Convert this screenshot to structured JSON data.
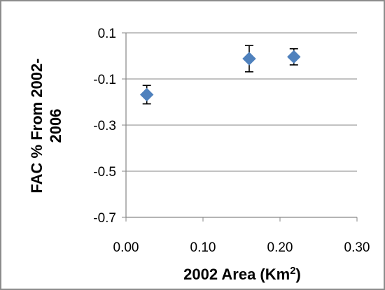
{
  "chart_data": {
    "type": "scatter",
    "title": "",
    "xlabel": "2002 Area (Km²)",
    "ylabel": "FAC % From 2002-2006",
    "ylabel_lines": [
      "FAC  % From  2002-",
      "2006"
    ],
    "xlim": [
      0.0,
      0.3
    ],
    "ylim": [
      -0.7,
      0.1
    ],
    "x_ticks": [
      0.0,
      0.1,
      0.2,
      0.3
    ],
    "x_tick_labels": [
      "0.00",
      "0.10",
      "0.20",
      "0.30"
    ],
    "y_ticks": [
      0.1,
      -0.1,
      -0.3,
      -0.5,
      -0.7
    ],
    "y_tick_labels": [
      "0.1",
      "-0.1",
      "-0.3",
      "-0.5",
      "-0.7"
    ],
    "grid": "horizontal",
    "marker": "diamond",
    "colors": {
      "marker": "#4f81bd",
      "grid": "#868686",
      "axis": "#868686",
      "error_bar": "#000000",
      "frame": "#8c8c8c"
    },
    "points": [
      {
        "x": 0.027,
        "y": -0.168,
        "err_low": 0.04,
        "err_high": 0.04
      },
      {
        "x": 0.16,
        "y": -0.012,
        "err_low": 0.057,
        "err_high": 0.057
      },
      {
        "x": 0.218,
        "y": -0.004,
        "err_low": 0.035,
        "err_high": 0.035
      }
    ]
  }
}
